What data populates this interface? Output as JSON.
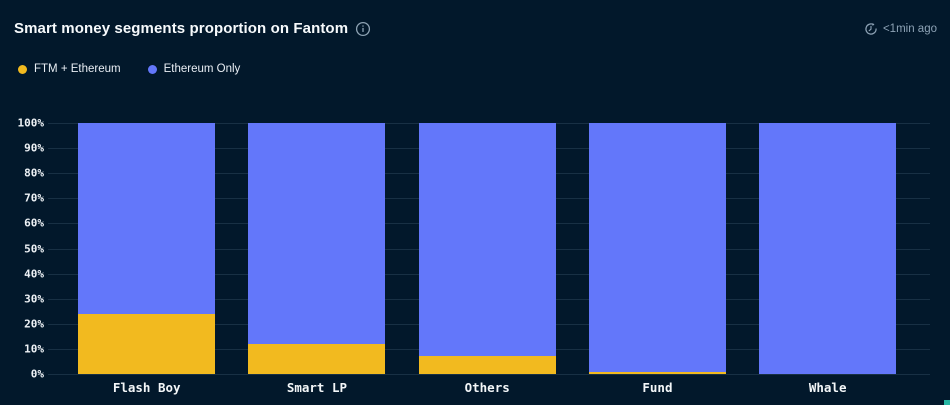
{
  "header": {
    "title": "Smart money segments proportion on Fantom",
    "info_icon": "info-circle-icon",
    "updated": "<1min ago",
    "updated_icon": "refresh-clock-icon"
  },
  "legend": [
    {
      "label": "FTM + Ethereum",
      "color": "#f2ba1f"
    },
    {
      "label": "Ethereum Only",
      "color": "#6377fa"
    }
  ],
  "chart_data": {
    "type": "bar",
    "stacked": true,
    "orientation": "vertical",
    "title": "Smart money segments proportion on Fantom",
    "categories": [
      "Flash Boy",
      "Smart LP",
      "Others",
      "Fund",
      "Whale"
    ],
    "series": [
      {
        "name": "FTM + Ethereum",
        "color": "#f2ba1f",
        "values": [
          24,
          12,
          7,
          1,
          0
        ]
      },
      {
        "name": "Ethereum Only",
        "color": "#6377fa",
        "values": [
          76,
          88,
          93,
          99,
          100
        ]
      }
    ],
    "xlabel": "",
    "ylabel": "",
    "ylim": [
      0,
      100
    ],
    "y_ticks": [
      "0%",
      "10%",
      "20%",
      "30%",
      "40%",
      "50%",
      "60%",
      "70%",
      "80%",
      "90%",
      "100%"
    ],
    "grid": true,
    "legend_position": "top-left"
  },
  "colors": {
    "background": "#02182b",
    "grid": "rgba(141,173,199,0.16)",
    "muted_text": "#8da2b5",
    "axis_text": "#eef2f6",
    "corner_accent": "#27b6a3"
  }
}
